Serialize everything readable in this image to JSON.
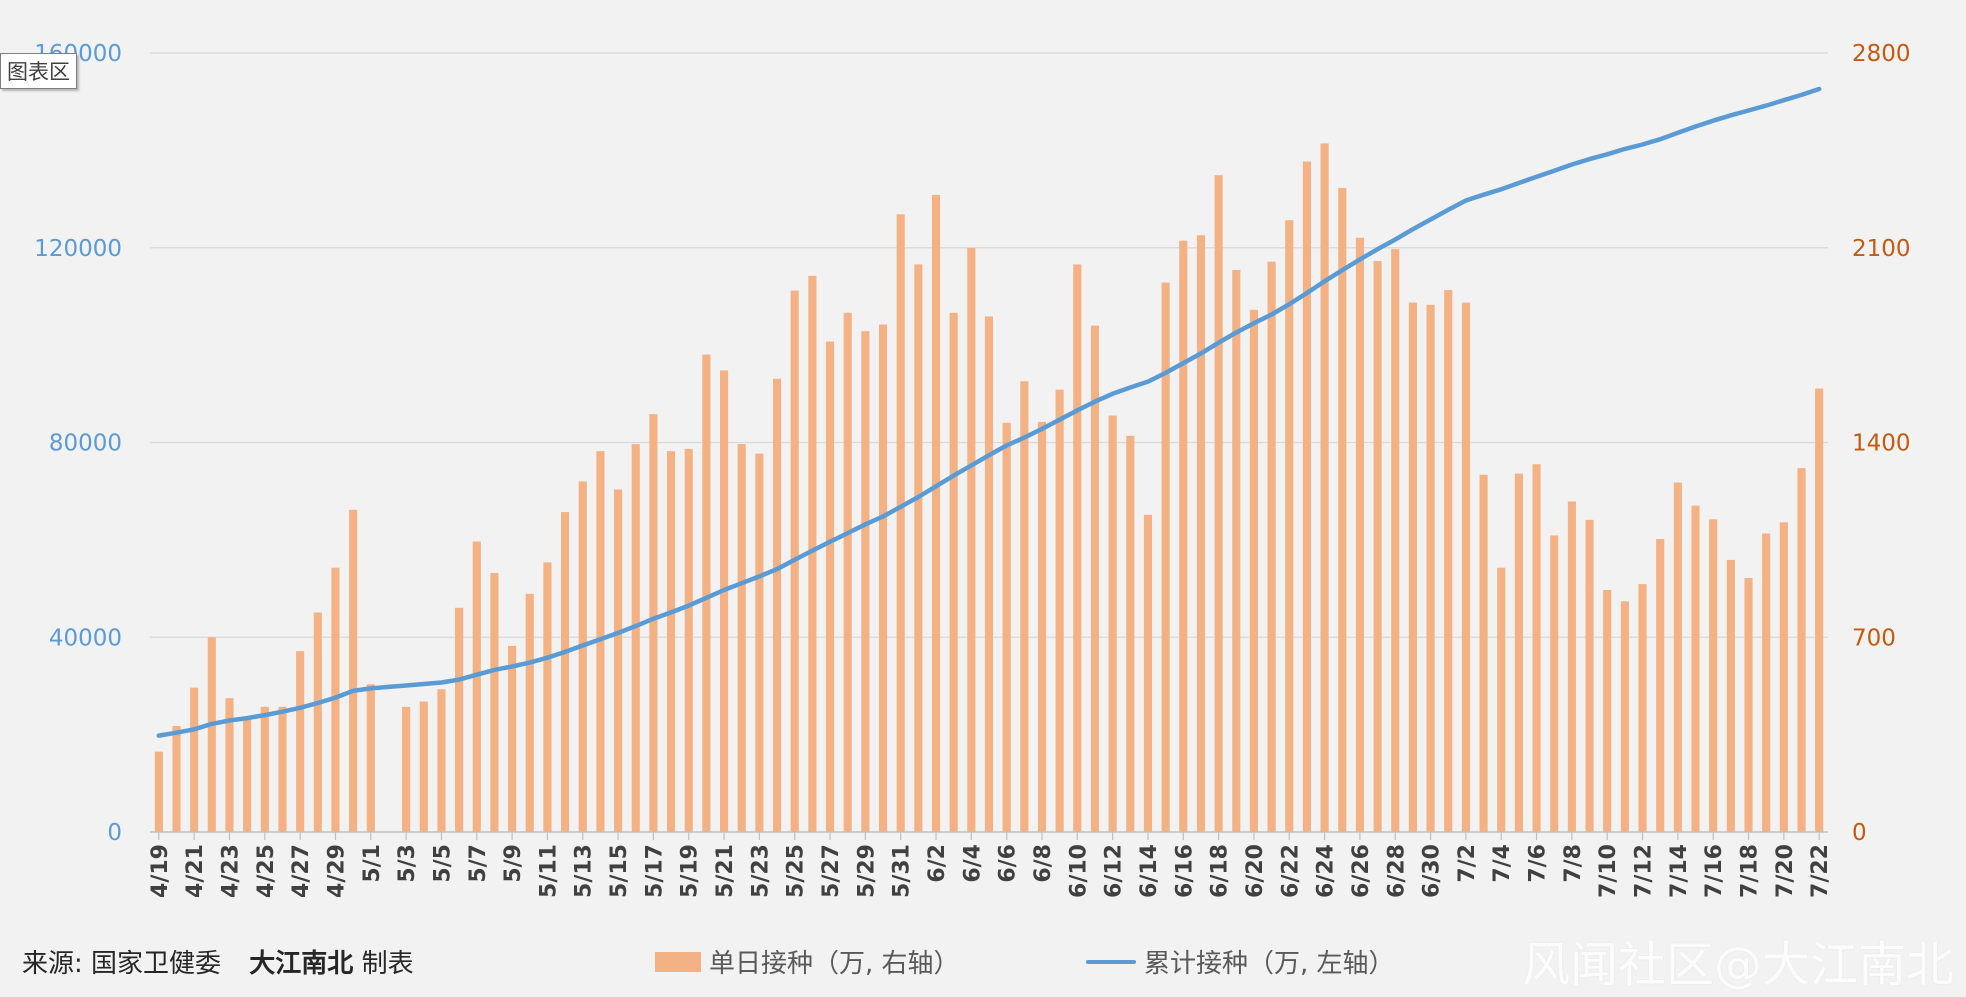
{
  "chart_data": {
    "type": "bar",
    "title": "",
    "series": [
      {
        "name": "单日接种（万, 右轴）",
        "type": "bar",
        "axis": "right",
        "color": "#f4b183",
        "values": [
          289,
          381,
          519,
          700,
          481,
          413,
          450,
          450,
          650,
          789,
          950,
          1158,
          531,
          0,
          450,
          469,
          513,
          806,
          1044,
          931,
          669,
          856,
          969,
          1150,
          1260,
          1369,
          1231,
          1394,
          1502,
          1369,
          1377,
          1716,
          1659,
          1394,
          1360,
          1629,
          1946,
          1999,
          1763,
          1866,
          1800,
          1824,
          2220,
          2040,
          2290,
          1866,
          2099,
          1853,
          1471,
          1620,
          1474,
          1590,
          2040,
          1820,
          1497,
          1424,
          1140,
          1975,
          2125,
          2145,
          2361,
          2020,
          1877,
          2050,
          2199,
          2410,
          2475,
          2315,
          2136,
          2052,
          2095,
          1903,
          1895,
          1948,
          1903,
          1284,
          950,
          1288,
          1322,
          1066,
          1188,
          1122,
          870,
          829,
          891,
          1053,
          1256,
          1173,
          1124,
          978,
          913,
          1073,
          1113,
          1308,
          1594
        ]
      },
      {
        "name": "累计接种（万, 左轴）",
        "type": "line",
        "axis": "left",
        "color": "#5b9bd5",
        "values": [
          19800,
          20400,
          21100,
          22200,
          22900,
          23400,
          24000,
          24700,
          25500,
          26500,
          27600,
          29000,
          29500,
          29800,
          30100,
          30400,
          30700,
          31300,
          32300,
          33300,
          34000,
          34800,
          35800,
          37000,
          38300,
          39600,
          40900,
          42300,
          43800,
          45100,
          46500,
          48100,
          49700,
          51100,
          52500,
          54000,
          55900,
          57800,
          59600,
          61400,
          63200,
          64800,
          66800,
          68800,
          71000,
          73200,
          75300,
          77400,
          79400,
          81000,
          82800,
          84700,
          86600,
          88400,
          90000,
          91300,
          92500,
          94300,
          96300,
          98300,
          100500,
          102600,
          104500,
          106300,
          108400,
          110700,
          113100,
          115400,
          117600,
          119700,
          121700,
          123800,
          125800,
          127800,
          129700,
          130900,
          132000,
          133300,
          134600,
          135800,
          137100,
          138200,
          139200,
          140300,
          141200,
          142300,
          143600,
          144900,
          146100,
          147200,
          148200,
          149200,
          150300,
          151400,
          152600
        ]
      }
    ],
    "categories": [
      "4/19",
      "4/20",
      "4/21",
      "4/22",
      "4/23",
      "4/24",
      "4/25",
      "4/26",
      "4/27",
      "4/28",
      "4/29",
      "4/30",
      "5/1",
      "5/2",
      "5/3",
      "5/4",
      "5/5",
      "5/6",
      "5/7",
      "5/8",
      "5/9",
      "5/10",
      "5/11",
      "5/12",
      "5/13",
      "5/14",
      "5/15",
      "5/16",
      "5/17",
      "5/18",
      "5/19",
      "5/20",
      "5/21",
      "5/22",
      "5/23",
      "5/24",
      "5/25",
      "5/26",
      "5/27",
      "5/28",
      "5/29",
      "5/30",
      "5/31",
      "6/1",
      "6/2",
      "6/3",
      "6/4",
      "6/5",
      "6/6",
      "6/7",
      "6/8",
      "6/9",
      "6/10",
      "6/11",
      "6/12",
      "6/13",
      "6/14",
      "6/15",
      "6/16",
      "6/17",
      "6/18",
      "6/19",
      "6/20",
      "6/21",
      "6/22",
      "6/23",
      "6/24",
      "6/25",
      "6/26",
      "6/27",
      "6/28",
      "6/29",
      "6/30",
      "7/1",
      "7/2",
      "7/3",
      "7/4",
      "7/5",
      "7/6",
      "7/7",
      "7/8",
      "7/9",
      "7/10",
      "7/11",
      "7/12",
      "7/13",
      "7/14",
      "7/15",
      "7/16",
      "7/17",
      "7/18",
      "7/19",
      "7/20",
      "7/21",
      "7/22"
    ],
    "x_tick_labels": [
      "4/19",
      "4/21",
      "4/23",
      "4/25",
      "4/27",
      "4/29",
      "5/1",
      "5/3",
      "5/5",
      "5/7",
      "5/9",
      "5/11",
      "5/13",
      "5/15",
      "5/17",
      "5/19",
      "5/21",
      "5/23",
      "5/25",
      "5/27",
      "5/29",
      "5/31",
      "6/2",
      "6/4",
      "6/6",
      "6/8",
      "6/10",
      "6/12",
      "6/14",
      "6/16",
      "6/18",
      "6/20",
      "6/22",
      "6/24",
      "6/26",
      "6/28",
      "6/30",
      "7/2",
      "7/4",
      "7/6",
      "7/8",
      "7/10",
      "7/12",
      "7/14",
      "7/16",
      "7/18",
      "7/20",
      "7/22"
    ],
    "y_left": {
      "ylim": [
        0,
        160000
      ],
      "ticks": [
        "0",
        "40000",
        "80000",
        "120000",
        "160000"
      ],
      "color": "#5b9bd5"
    },
    "y_right": {
      "ylim": [
        0,
        2800
      ],
      "ticks": [
        "0",
        "700",
        "1400",
        "2100",
        "2800"
      ],
      "color": "#c55a11"
    },
    "grid": true,
    "legend": "bottom"
  },
  "labels": {
    "chart_area_tag": "图表区",
    "source_prefix": "来源:  国家卫健委",
    "source_author": "大江南北",
    "source_suffix": "制表",
    "watermark": "风闻社区@大江南北"
  },
  "colors": {
    "background": "#f2f2f2",
    "gridline": "#d9d9d9",
    "axis_line": "#bfbfbf",
    "tick_label_x": "#404040"
  }
}
